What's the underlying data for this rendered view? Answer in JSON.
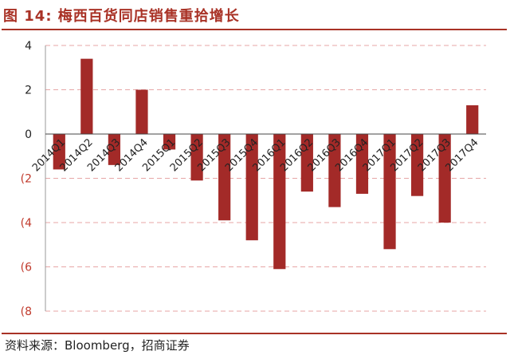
{
  "title": "图 14: 梅西百货同店销售重拾增长",
  "source": "资料来源：Bloomberg，招商证券",
  "colors": {
    "bar": "#a32a28",
    "title": "#a93226",
    "grid": "#e7a6a6",
    "negative_tick": "#c0392b"
  },
  "chart_data": {
    "type": "bar",
    "title": "",
    "xlabel": "",
    "ylabel": "",
    "ylim": [
      -8,
      4
    ],
    "yticks": [
      {
        "value": 4,
        "label": "4"
      },
      {
        "value": 2,
        "label": "2"
      },
      {
        "value": 0,
        "label": "0"
      },
      {
        "value": -2,
        "label": "(2"
      },
      {
        "value": -4,
        "label": "(4"
      },
      {
        "value": -6,
        "label": "(6"
      },
      {
        "value": -8,
        "label": "(8"
      }
    ],
    "grid": true,
    "categories": [
      "2014Q1",
      "2014Q2",
      "2014Q3",
      "2014Q4",
      "2015Q1",
      "2015Q2",
      "2015Q3",
      "2015Q4",
      "2016Q1",
      "2016Q2",
      "2016Q3",
      "2016Q4",
      "2017Q1",
      "2017Q2",
      "2017Q3",
      "2017Q4"
    ],
    "values": [
      -1.6,
      3.4,
      -1.4,
      2.0,
      -0.7,
      -2.1,
      -3.9,
      -4.8,
      -6.1,
      -2.6,
      -3.3,
      -2.7,
      -5.2,
      -2.8,
      -4.0,
      1.3
    ]
  }
}
